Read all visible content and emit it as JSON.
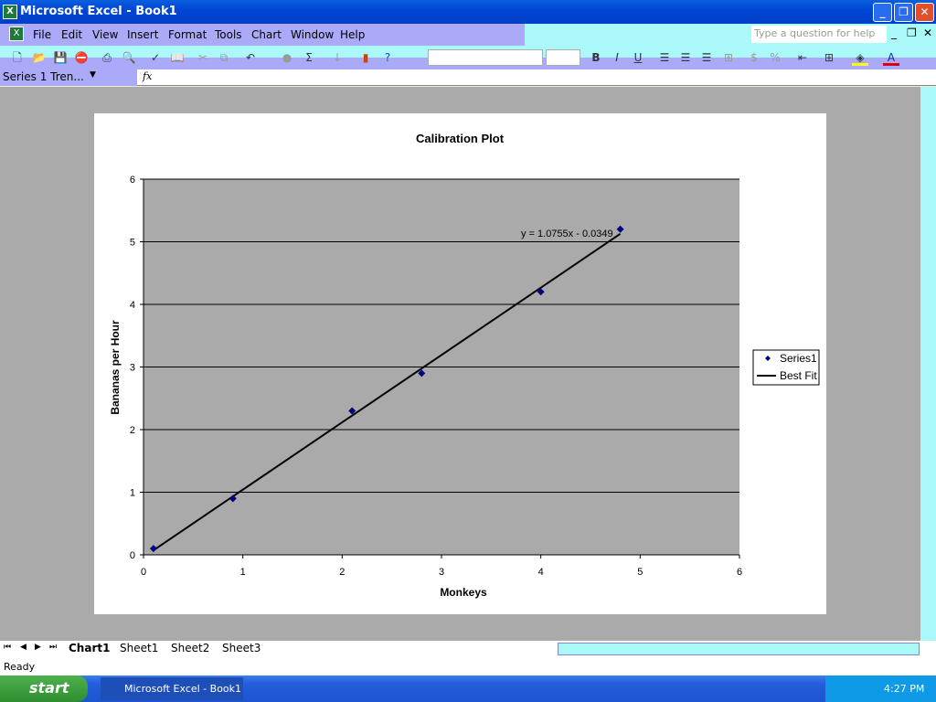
{
  "window": {
    "title": "Microsoft Excel - Book1",
    "icon": "excel-icon"
  },
  "menu": {
    "items": [
      "File",
      "Edit",
      "View",
      "Insert",
      "Format",
      "Tools",
      "Chart",
      "Window",
      "Help"
    ],
    "help_placeholder": "Type a question for help"
  },
  "toolbar": {
    "icons": [
      "new-icon",
      "open-icon",
      "save-icon",
      "permission-icon",
      "print-icon",
      "print-preview-icon",
      "spelling-icon",
      "research-icon",
      "cut-icon",
      "copy-icon",
      "undo-icon",
      "hyperlink-icon",
      "autosum-icon",
      "sort-icon",
      "chart-wizard-icon",
      "help-icon"
    ],
    "format_icons": [
      "bold-icon",
      "italic-icon",
      "underline-icon",
      "align-left-icon",
      "center-icon",
      "align-right-icon",
      "merge-icon",
      "currency-icon",
      "percent-icon",
      "decrease-indent-icon",
      "borders-icon",
      "fill-color-icon",
      "font-color-icon"
    ],
    "bold": "B",
    "italic": "I",
    "underline": "U"
  },
  "formula_bar": {
    "name_box": "Series 1 Tren...",
    "fx": "fx",
    "value": ""
  },
  "chart_data": {
    "type": "scatter",
    "title": "Calibration Plot",
    "xlabel": "Monkeys",
    "ylabel": "Bananas per Hour",
    "xlim": [
      0,
      6
    ],
    "ylim": [
      0,
      6
    ],
    "xticks": [
      "0",
      "1",
      "2",
      "3",
      "4",
      "5",
      "6"
    ],
    "yticks": [
      "0",
      "1",
      "2",
      "3",
      "4",
      "5",
      "6"
    ],
    "grid": "horizontal major",
    "legend": "right",
    "series": [
      {
        "name": "Series1",
        "x": [
          0.1,
          0.9,
          2.1,
          2.8,
          4.0,
          4.8
        ],
        "y": [
          0.1,
          0.9,
          2.3,
          2.9,
          4.2,
          5.2
        ],
        "color": "#000080"
      }
    ],
    "trendline": {
      "name": "Best Fit",
      "slope": 1.0755,
      "intercept": -0.0349,
      "x_range": [
        0.1,
        4.8
      ],
      "equation": "y = 1.0755x - 0.0349"
    }
  },
  "sheet_tabs": [
    "Chart1",
    "Sheet1",
    "Sheet2",
    "Sheet3"
  ],
  "active_tab": "Chart1",
  "status": "Ready",
  "taskbar": {
    "start": "start",
    "task": "Microsoft Excel - Book1",
    "clock": "4:27 PM"
  }
}
